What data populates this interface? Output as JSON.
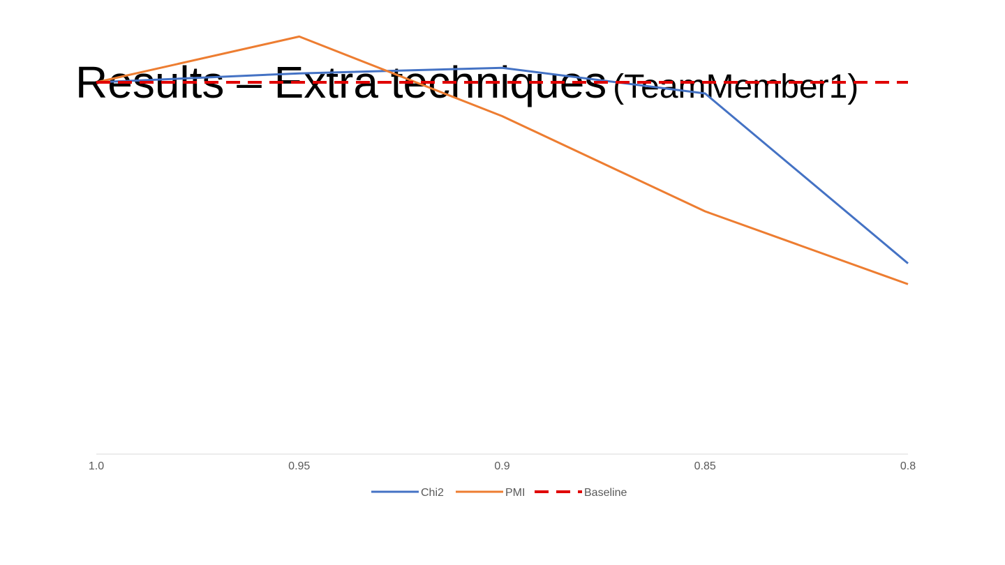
{
  "slide": {
    "title_main": "Results – Extra techniques",
    "title_sub": "(TeamMember1)"
  },
  "chart_data": {
    "type": "line",
    "title": "",
    "xlabel": "",
    "ylabel": "",
    "categories": [
      "1.0",
      "0.95",
      "0.9",
      "0.85",
      "0.8"
    ],
    "ylim": [
      0,
      100
    ],
    "y_axis_visible": false,
    "grid": false,
    "legend_position": "bottom",
    "series": [
      {
        "name": "Chi2",
        "color": "#4472C4",
        "style": "solid",
        "values": [
          100,
          102.4,
          103.9,
          97.0,
          51.3
        ]
      },
      {
        "name": "PMI",
        "color": "#ED7D31",
        "style": "solid",
        "values": [
          100,
          112.3,
          90.9,
          65.3,
          45.7
        ]
      },
      {
        "name": "Baseline",
        "color": "#E00000",
        "style": "dashed",
        "values": [
          100,
          100,
          100,
          100,
          100
        ]
      }
    ]
  }
}
